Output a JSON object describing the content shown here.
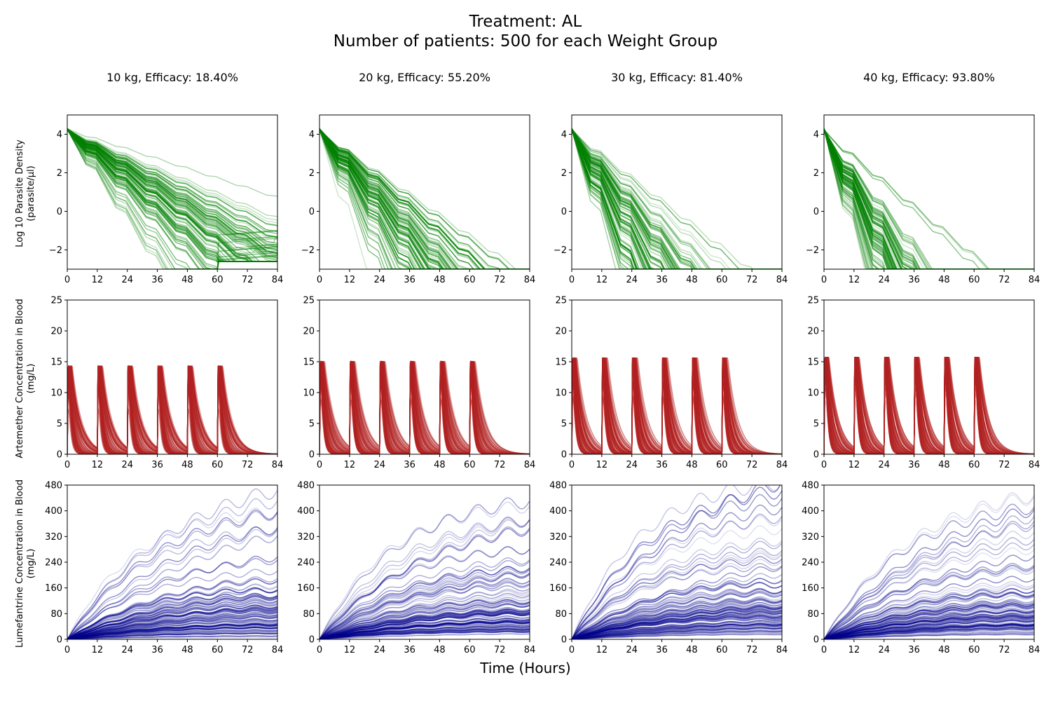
{
  "figure": {
    "title_line1": "Treatment: AL",
    "title_line2": "Number of patients: 500 for each Weight Group",
    "xlabel": "Time (Hours)"
  },
  "colors": {
    "parasite": "#008000",
    "artemether": "#b22222",
    "lumefantrine": "#00008b"
  },
  "column_titles": [
    "10 kg, Efficacy: 18.40%",
    "20 kg, Efficacy: 55.20%",
    "30 kg, Efficacy: 81.40%",
    "40 kg, Efficacy: 93.80%"
  ],
  "row_ylabels": [
    [
      "Log 10 Parasite Density",
      "(parasite/µl)"
    ],
    [
      "Artemether Concentration in Blood",
      "(mg/L)"
    ],
    [
      "Lumefantrine Concentration in Blood",
      "(mg/L)"
    ]
  ],
  "chart_data": {
    "type": "line",
    "xlabel": "Time (Hours)",
    "xlim": [
      0,
      84
    ],
    "xticks": [
      0,
      12,
      24,
      36,
      48,
      60,
      72,
      84
    ],
    "patients_per_group": 500,
    "weight_groups": [
      "10 kg",
      "20 kg",
      "30 kg",
      "40 kg"
    ],
    "efficacy": [
      "18.40%",
      "55.20%",
      "81.40%",
      "93.80%"
    ],
    "dose_times": [
      0,
      12,
      24,
      36,
      48,
      60
    ],
    "rows": [
      {
        "name": "parasite",
        "ylabel": "Log 10 Parasite Density (parasite/µl)",
        "ylim": [
          -3,
          5
        ],
        "yticks": [
          -2,
          0,
          2,
          4
        ],
        "ytick_labels": [
          "−2",
          "0",
          "2",
          "4"
        ],
        "initial_value": 4.3,
        "floor_value": -3,
        "kill_rate_per_hour": [
          0.13,
          0.2,
          0.27,
          0.33
        ]
      },
      {
        "name": "artemether",
        "ylabel": "Artemether Concentration in Blood (mg/L)",
        "ylim": [
          0,
          25
        ],
        "yticks": [
          0,
          5,
          10,
          15,
          20,
          25
        ],
        "ytick_labels": [
          "0",
          "5",
          "10",
          "15",
          "20",
          "25"
        ],
        "peak_per_dose": [
          14,
          14.7,
          15.3,
          15.4
        ]
      },
      {
        "name": "lumefantrine",
        "ylabel": "Lumefantrine Concentration in Blood (mg/L)",
        "ylim": [
          0,
          480
        ],
        "yticks": [
          0,
          80,
          160,
          240,
          320,
          400,
          480
        ],
        "ytick_labels": [
          "0",
          "80",
          "160",
          "240",
          "320",
          "400",
          "480"
        ],
        "max_at_84h": [
          455,
          455,
          480,
          450
        ],
        "typical_at_84h": [
          70,
          85,
          95,
          80
        ]
      }
    ]
  }
}
